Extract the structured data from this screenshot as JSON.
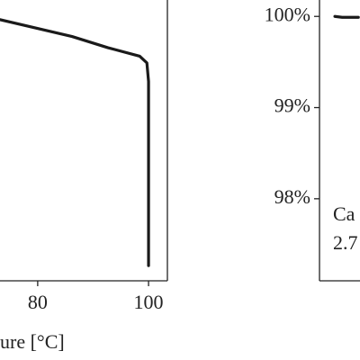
{
  "chart_data": [
    {
      "type": "line",
      "xlabel": "ure [°C]",
      "x": [
        73.2,
        79.7,
        86.2,
        92.7,
        98.4,
        99.7,
        100.0,
        100.0
      ],
      "series": [
        {
          "color": "#1a1a1a",
          "values": [
            93,
            90,
            87,
            83,
            80,
            77.6,
            71,
            5.4
          ]
        }
      ],
      "xlim": [
        73.2,
        103.4
      ],
      "ylim": [
        0,
        100
      ],
      "xticks": [
        80,
        100
      ]
    },
    {
      "type": "line",
      "annotations": [
        "Ca",
        "2.7"
      ],
      "x": [
        0.38,
        0.56,
        0.96
      ],
      "series": [
        {
          "color": "#1a1a1a",
          "values": [
            100,
            99.99,
            99.99
          ]
        }
      ],
      "xlim": [
        0,
        1
      ],
      "ylim": [
        97.1,
        100.18
      ],
      "yticks": [
        {
          "value": 100,
          "label": "100%"
        },
        {
          "value": 99,
          "label": "99%"
        },
        {
          "value": 98,
          "label": "98%"
        }
      ]
    }
  ]
}
